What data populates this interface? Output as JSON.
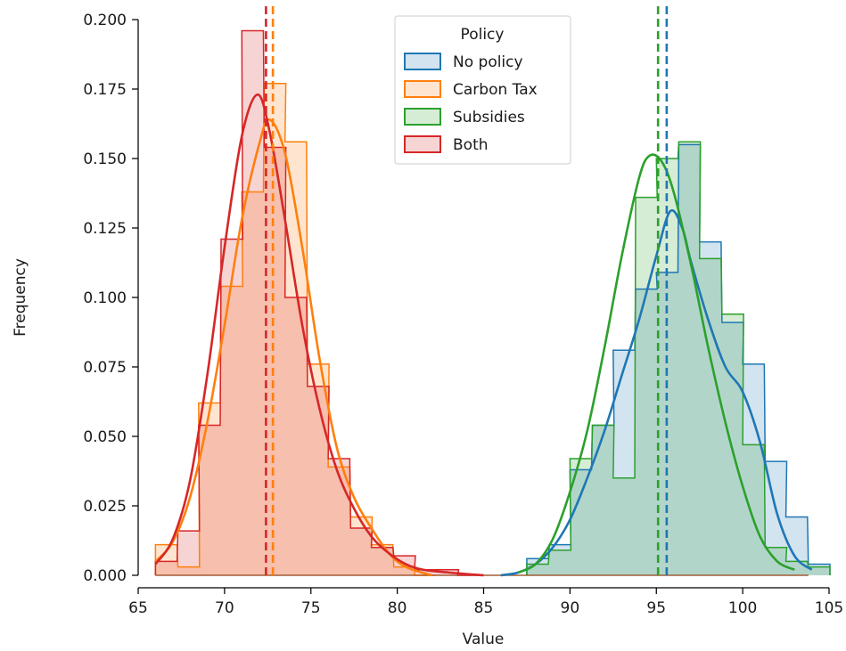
{
  "chart_data": {
    "type": "histogram",
    "xlabel": "Value",
    "ylabel": "Frequency",
    "xlim": [
      65,
      105
    ],
    "ylim": [
      0,
      0.2
    ],
    "x_ticks": [
      65,
      70,
      75,
      80,
      85,
      90,
      95,
      100,
      105
    ],
    "y_ticks": [
      0.0,
      0.025,
      0.05,
      0.075,
      0.1,
      0.125,
      0.15,
      0.175,
      0.2
    ],
    "x_tick_labels": [
      "65",
      "70",
      "75",
      "80",
      "85",
      "90",
      "95",
      "100",
      "105"
    ],
    "y_tick_labels": [
      "0.000",
      "0.025",
      "0.050",
      "0.075",
      "0.100",
      "0.125",
      "0.150",
      "0.175",
      "0.200"
    ],
    "grid": false,
    "histogram_style": "step with filled area, KDE curves and dashed mean lines",
    "legend": {
      "title": "Policy",
      "placement": "top-center"
    },
    "series": [
      {
        "name": "No policy",
        "color": "#1f77b4",
        "mean": 95.6,
        "bins": [
          [
            87.5,
            0.006
          ],
          [
            88.8,
            0.011
          ],
          [
            90.0,
            0.038
          ],
          [
            91.3,
            0.054
          ],
          [
            92.5,
            0.081
          ],
          [
            93.8,
            0.103
          ],
          [
            95.0,
            0.109
          ],
          [
            96.3,
            0.155
          ],
          [
            97.5,
            0.12
          ],
          [
            98.8,
            0.091
          ],
          [
            100.0,
            0.076
          ],
          [
            101.3,
            0.041
          ],
          [
            102.5,
            0.021
          ],
          [
            103.8,
            0.004
          ]
        ],
        "kde": [
          [
            86,
            0.0
          ],
          [
            87,
            0.001
          ],
          [
            88,
            0.004
          ],
          [
            89,
            0.01
          ],
          [
            90,
            0.02
          ],
          [
            91,
            0.035
          ],
          [
            92,
            0.052
          ],
          [
            93,
            0.072
          ],
          [
            94,
            0.092
          ],
          [
            95,
            0.115
          ],
          [
            95.8,
            0.131
          ],
          [
            96.5,
            0.125
          ],
          [
            97,
            0.113
          ],
          [
            98,
            0.092
          ],
          [
            99,
            0.075
          ],
          [
            100,
            0.066
          ],
          [
            101,
            0.048
          ],
          [
            102,
            0.022
          ],
          [
            103,
            0.007
          ],
          [
            104,
            0.002
          ]
        ]
      },
      {
        "name": "Carbon Tax",
        "color": "#ff7f0e",
        "mean": 72.8,
        "bins": [
          [
            66.0,
            0.011
          ],
          [
            67.3,
            0.003
          ],
          [
            68.5,
            0.062
          ],
          [
            69.8,
            0.104
          ],
          [
            71.0,
            0.138
          ],
          [
            72.3,
            0.177
          ],
          [
            73.5,
            0.156
          ],
          [
            74.8,
            0.076
          ],
          [
            76.0,
            0.039
          ],
          [
            77.3,
            0.021
          ],
          [
            78.5,
            0.011
          ],
          [
            79.8,
            0.003
          ],
          [
            81.0,
            0.0
          ]
        ],
        "kde": [
          [
            66,
            0.005
          ],
          [
            67,
            0.012
          ],
          [
            68,
            0.028
          ],
          [
            69,
            0.055
          ],
          [
            70,
            0.09
          ],
          [
            71,
            0.128
          ],
          [
            72,
            0.155
          ],
          [
            72.6,
            0.164
          ],
          [
            73.5,
            0.152
          ],
          [
            74.5,
            0.118
          ],
          [
            75.5,
            0.078
          ],
          [
            76.5,
            0.046
          ],
          [
            77.5,
            0.028
          ],
          [
            78.5,
            0.017
          ],
          [
            79.5,
            0.008
          ],
          [
            80.5,
            0.003
          ],
          [
            82,
            0.0
          ]
        ]
      },
      {
        "name": "Subsidies",
        "color": "#2ca02c",
        "mean": 95.1,
        "bins": [
          [
            87.5,
            0.004
          ],
          [
            88.8,
            0.009
          ],
          [
            90.0,
            0.042
          ],
          [
            91.3,
            0.054
          ],
          [
            92.5,
            0.035
          ],
          [
            93.8,
            0.136
          ],
          [
            95.0,
            0.15
          ],
          [
            96.3,
            0.156
          ],
          [
            97.5,
            0.114
          ],
          [
            98.8,
            0.094
          ],
          [
            100.0,
            0.047
          ],
          [
            101.3,
            0.01
          ],
          [
            102.5,
            0.005
          ],
          [
            103.8,
            0.003
          ]
        ],
        "kde": [
          [
            87,
            0.001
          ],
          [
            88,
            0.004
          ],
          [
            89,
            0.013
          ],
          [
            90,
            0.03
          ],
          [
            91,
            0.052
          ],
          [
            92,
            0.082
          ],
          [
            93,
            0.115
          ],
          [
            94,
            0.143
          ],
          [
            94.6,
            0.151
          ],
          [
            95.3,
            0.149
          ],
          [
            96,
            0.138
          ],
          [
            97,
            0.112
          ],
          [
            98,
            0.082
          ],
          [
            99,
            0.055
          ],
          [
            100,
            0.032
          ],
          [
            101,
            0.014
          ],
          [
            102,
            0.005
          ],
          [
            103,
            0.002
          ]
        ]
      },
      {
        "name": "Both",
        "color": "#d62728",
        "mean": 72.4,
        "bins": [
          [
            66.0,
            0.005
          ],
          [
            67.3,
            0.016
          ],
          [
            68.5,
            0.054
          ],
          [
            69.8,
            0.121
          ],
          [
            71.0,
            0.196
          ],
          [
            72.3,
            0.154
          ],
          [
            73.5,
            0.1
          ],
          [
            74.8,
            0.068
          ],
          [
            76.0,
            0.042
          ],
          [
            77.3,
            0.017
          ],
          [
            78.5,
            0.01
          ],
          [
            79.8,
            0.007
          ],
          [
            81.0,
            0.002
          ],
          [
            82.3,
            0.002
          ],
          [
            83.5,
            0.0
          ]
        ],
        "kde": [
          [
            66,
            0.004
          ],
          [
            67,
            0.013
          ],
          [
            68,
            0.034
          ],
          [
            69,
            0.072
          ],
          [
            70,
            0.118
          ],
          [
            71,
            0.158
          ],
          [
            71.9,
            0.173
          ],
          [
            72.6,
            0.16
          ],
          [
            73.5,
            0.128
          ],
          [
            74.5,
            0.09
          ],
          [
            75.5,
            0.06
          ],
          [
            76.5,
            0.038
          ],
          [
            77.5,
            0.024
          ],
          [
            78.5,
            0.014
          ],
          [
            79.5,
            0.008
          ],
          [
            80.5,
            0.004
          ],
          [
            81.5,
            0.002
          ],
          [
            83,
            0.001
          ],
          [
            85,
            0.0
          ]
        ]
      }
    ]
  }
}
